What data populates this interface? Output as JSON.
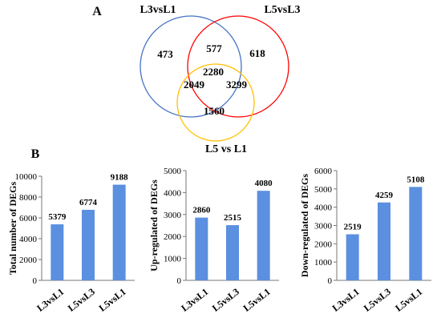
{
  "panel_a": {
    "label": "A"
  },
  "panel_b": {
    "label": "B"
  },
  "venn": {
    "sets": [
      {
        "name": "L3vsL1",
        "color": "#4472c4"
      },
      {
        "name": "L5vsL3",
        "color": "#ff0000"
      },
      {
        "name": "L5 vs L1",
        "color": "#ffc000"
      }
    ],
    "regions": {
      "L3vsL1_only": "473",
      "L3vsL1_and_L5vsL3": "577",
      "L5vsL3_only": "618",
      "all_three": "2280",
      "L3vsL1_and_L5vsL1": "2049",
      "L5vsL3_and_L5vsL1": "3299",
      "L5vsL1_only": "1560"
    }
  },
  "chart_data": [
    {
      "type": "bar",
      "ylabel": "Total number of DEGs",
      "categories": [
        "L3vsL1",
        "L5vsL3",
        "L5vsL1"
      ],
      "values": [
        5379,
        6774,
        9188
      ],
      "ylim": [
        0,
        10000
      ],
      "yticks": [
        0,
        2000,
        4000,
        6000,
        8000,
        10000
      ],
      "color": "#5b8fe0",
      "grid": false
    },
    {
      "type": "bar",
      "ylabel": "Up-regulated of DEGs",
      "categories": [
        "L3vsL1",
        "L5vsL3",
        "L5vsL1"
      ],
      "values": [
        2860,
        2515,
        4080
      ],
      "ylim": [
        0,
        5000
      ],
      "yticks": [
        0,
        1000,
        2000,
        3000,
        4000,
        5000
      ],
      "color": "#5b8fe0",
      "grid": false
    },
    {
      "type": "bar",
      "ylabel": "Down-regulated of DEGs",
      "categories": [
        "L3vsL1",
        "L5vsL3",
        "L5vsL1"
      ],
      "values": [
        2519,
        4259,
        5108
      ],
      "ylim": [
        0,
        6000
      ],
      "yticks": [
        0,
        1000,
        2000,
        3000,
        4000,
        5000,
        6000
      ],
      "color": "#5b8fe0",
      "grid": false
    }
  ]
}
